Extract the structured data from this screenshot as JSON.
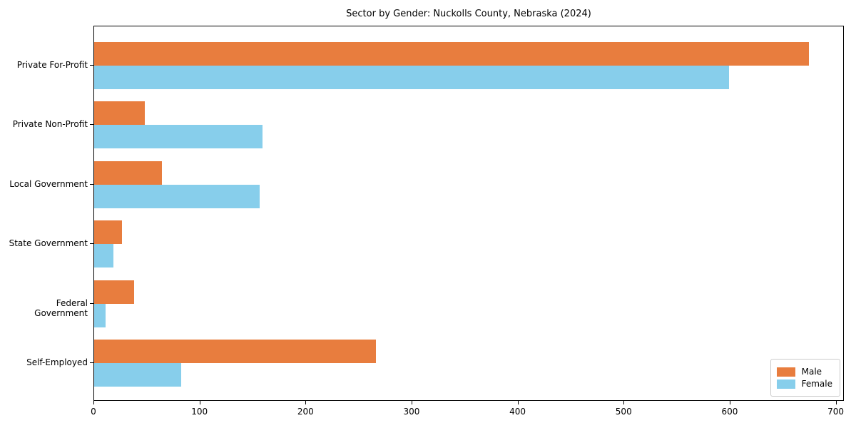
{
  "title": "Sector by Gender: Nuckolls County, Nebraska (2024)",
  "chart_data": {
    "type": "bar",
    "orientation": "horizontal",
    "title": "Sector by Gender: Nuckolls County, Nebraska (2024)",
    "xlabel": "",
    "ylabel": "",
    "categories": [
      "Private For-Profit",
      "Private Non-Profit",
      "Local Government",
      "State Government",
      "Federal Government",
      "Self-Employed"
    ],
    "series": [
      {
        "name": "Male",
        "color": "#e87d3e",
        "values": [
          674,
          48,
          64,
          26,
          38,
          266
        ]
      },
      {
        "name": "Female",
        "color": "#87ceeb",
        "values": [
          599,
          159,
          156,
          18,
          11,
          82
        ]
      }
    ],
    "xlim": [
      0,
      707.7
    ],
    "x_ticks": [
      0,
      100,
      200,
      300,
      400,
      500,
      600,
      700
    ],
    "grid": false,
    "legend": {
      "position": "lower right",
      "entries": [
        "Male",
        "Female"
      ]
    }
  },
  "colors": {
    "male": "#e87d3e",
    "female": "#87ceeb",
    "spine": "#000000",
    "legend_border": "#cccccc",
    "background": "#ffffff"
  }
}
